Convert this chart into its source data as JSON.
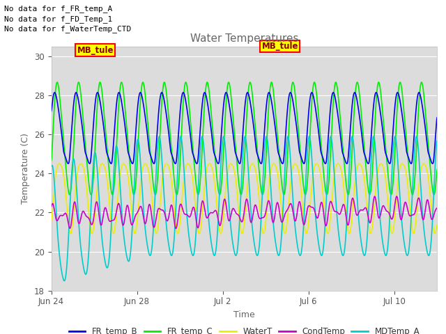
{
  "title": "Water Temperatures",
  "xlabel": "Time",
  "ylabel": "Temperature (C)",
  "ylim": [
    18,
    30.5
  ],
  "yticks": [
    18,
    20,
    22,
    24,
    26,
    28,
    30
  ],
  "xlim_days": [
    0,
    18
  ],
  "background_color": "#dcdcdc",
  "fig_background": "#ffffff",
  "grid_color": "#ffffff",
  "series": {
    "FR_temp_B": {
      "color": "#0000ee",
      "lw": 1.2
    },
    "FR_temp_C": {
      "color": "#00ee00",
      "lw": 1.2
    },
    "WaterT": {
      "color": "#eeee00",
      "lw": 1.2
    },
    "CondTemp": {
      "color": "#cc00cc",
      "lw": 1.2
    },
    "MDTemp_A": {
      "color": "#00cccc",
      "lw": 1.2
    }
  },
  "annotations": [
    "No data for f_FR_temp_A",
    "No data for f_FD_Temp_1",
    "No data for f_WaterTemp_CTD"
  ],
  "annotation_box_label": "MB_tule",
  "xtick_labels": [
    "Jun 24",
    "Jun 28",
    "Jul 2",
    "Jul 6",
    "Jul 10"
  ],
  "xtick_positions": [
    0,
    4,
    8,
    12,
    16
  ]
}
